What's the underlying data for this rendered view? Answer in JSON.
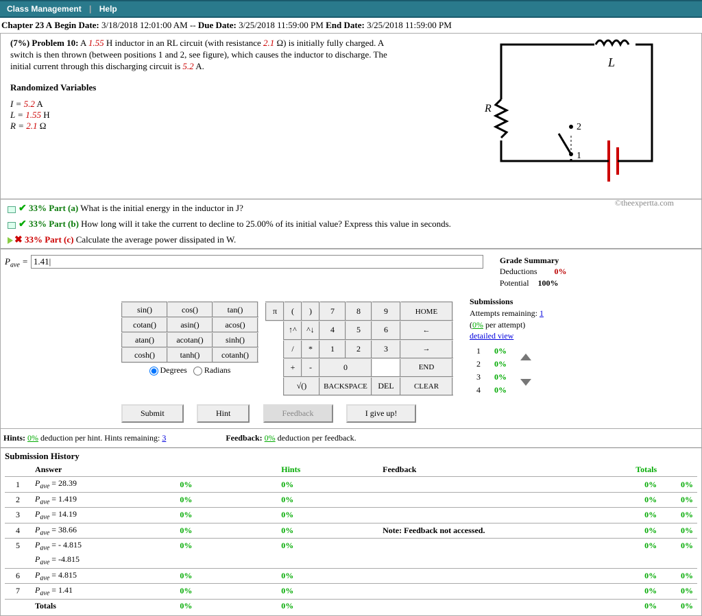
{
  "topbar": {
    "link1": "Class Management",
    "link2": "Help"
  },
  "chapter": {
    "title": "Chapter 23 A",
    "begin_label": "Begin Date:",
    "begin": "3/18/2018 12:01:00 AM",
    "due_label": "Due Date:",
    "due": "3/25/2018 11:59:00 PM",
    "end_label": "End Date:",
    "end": "3/25/2018 11:59:00 PM"
  },
  "problem": {
    "weight": "(7%)",
    "label": "Problem 10:",
    "text_a": "A ",
    "v1": "1.55",
    "text_b": " H inductor in an RL circuit (with resistance ",
    "v2": "2.1",
    "text_c": " Ω) is initially fully charged. A switch is then thrown (between positions 1 and 2, see figure), which causes the inductor to discharge. The initial current through this discharging circuit is ",
    "v3": "5.2",
    "text_d": " A.",
    "rand_hdr": "Randomized Variables",
    "var_I_lhs": "I = ",
    "var_I": "5.2",
    "var_I_unit": " A",
    "var_L_lhs": "L = ",
    "var_L": "1.55",
    "var_L_unit": " H",
    "var_R_lhs": "R = ",
    "var_R": "2.1",
    "var_R_unit": " Ω",
    "copyright": "©theexpertta.com"
  },
  "parts": {
    "a_pct": "33% Part (a)",
    "a_text": "What is the initial energy in the inductor in J?",
    "b_pct": "33% Part (b)",
    "b_text": "How long will it take the current to decline to 25.00% of its initial value? Express this value in seconds.",
    "c_pct": "33% Part (c)",
    "c_text": "Calculate the average power dissipated in W."
  },
  "answer": {
    "lhs": "P",
    "sub": "ave",
    "eq": " = ",
    "value": "1.41|"
  },
  "grade": {
    "hdr": "Grade Summary",
    "ded_label": "Deductions",
    "ded_val": "0%",
    "pot_label": "Potential",
    "pot_val": "100%"
  },
  "submissions": {
    "hdr": "Submissions",
    "attempts_label": "Attempts remaining:",
    "attempts": "1",
    "per_attempt": "(0% per attempt)",
    "detailed": "detailed view",
    "rows": [
      {
        "n": "1",
        "p": "0%"
      },
      {
        "n": "2",
        "p": "0%"
      },
      {
        "n": "3",
        "p": "0%"
      },
      {
        "n": "4",
        "p": "0%"
      }
    ]
  },
  "funcs": {
    "r1": [
      "sin()",
      "cos()",
      "tan()"
    ],
    "r2": [
      "cotan()",
      "asin()",
      "acos()"
    ],
    "r3": [
      "atan()",
      "acotan()",
      "sinh()"
    ],
    "r4": [
      "cosh()",
      "tanh()",
      "cotanh()"
    ],
    "deg": "Degrees",
    "rad": "Radians"
  },
  "keypad": {
    "r1": [
      "π",
      "(",
      ")",
      "7",
      "8",
      "9",
      "HOME"
    ],
    "r2": [
      "—",
      "↑^",
      "^↓",
      "4",
      "5",
      "6",
      "←"
    ],
    "r3": [
      "—",
      "/",
      "*",
      "1",
      "2",
      "3",
      "→"
    ],
    "r4": [
      "—",
      "+",
      "-",
      "0",
      "—",
      "END"
    ],
    "r5": [
      "—",
      "√()",
      "BACKSPACE",
      "DEL",
      "CLEAR"
    ]
  },
  "actions": {
    "submit": "Submit",
    "hint": "Hint",
    "feedback": "Feedback",
    "giveup": "I give up!"
  },
  "hints_line": {
    "hints_label": "Hints:",
    "hints_pct": "0%",
    "hints_rest": " deduction per hint. Hints remaining: ",
    "hints_remain": "3",
    "fb_label": "Feedback:",
    "fb_pct": "0%",
    "fb_rest": " deduction per feedback."
  },
  "history": {
    "hdr": "Submission History",
    "cols": [
      "",
      "Answer",
      "",
      "Hints",
      "",
      "Feedback",
      "Totals",
      ""
    ],
    "rows": [
      {
        "n": "1",
        "ans": "Pₐᵥₑ = 28.39",
        "h": "0%",
        "hi": "0%",
        "fb": "",
        "t1": "0%",
        "t2": "0%"
      },
      {
        "n": "2",
        "ans": "Pₐᵥₑ = 1.419",
        "h": "0%",
        "hi": "0%",
        "fb": "",
        "t1": "0%",
        "t2": "0%"
      },
      {
        "n": "3",
        "ans": "Pₐᵥₑ = 14.19",
        "h": "0%",
        "hi": "0%",
        "fb": "",
        "t1": "0%",
        "t2": "0%"
      },
      {
        "n": "4",
        "ans": "Pₐᵥₑ = 38.66",
        "h": "0%",
        "hi": "0%",
        "fb": "Note: Feedback not accessed.",
        "t1": "0%",
        "t2": "0%"
      },
      {
        "n": "5",
        "ans": "Pₐᵥₑ = - 4.815",
        "h": "0%",
        "hi": "0%",
        "fb": "",
        "t1": "0%",
        "t2": "0%",
        "extra": "Pₐᵥₑ = -4.815"
      },
      {
        "n": "6",
        "ans": "Pₐᵥₑ = 4.815",
        "h": "0%",
        "hi": "0%",
        "fb": "",
        "t1": "0%",
        "t2": "0%"
      },
      {
        "n": "7",
        "ans": "Pₐᵥₑ = 1.41",
        "h": "0%",
        "hi": "0%",
        "fb": "",
        "t1": "0%",
        "t2": "0%"
      }
    ],
    "totals_label": "Totals",
    "totals": {
      "h": "0%",
      "hi": "0%",
      "t1": "0%",
      "t2": "0%"
    }
  },
  "circuit": {
    "L": "L",
    "R": "R",
    "p1": "1",
    "p2": "2"
  }
}
